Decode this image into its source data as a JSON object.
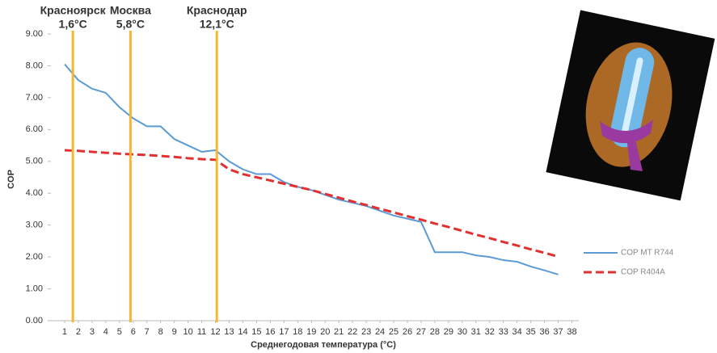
{
  "chart_data": {
    "type": "line",
    "x_label": "Среднегодовая температура (°C)",
    "y_label": "COP",
    "x": [
      1,
      2,
      3,
      4,
      5,
      6,
      7,
      8,
      9,
      10,
      11,
      12,
      13,
      14,
      15,
      16,
      17,
      18,
      19,
      20,
      21,
      22,
      23,
      24,
      25,
      26,
      27,
      28,
      29,
      30,
      31,
      32,
      33,
      34,
      35,
      36,
      37
    ],
    "series": [
      {
        "name": "COP MT R744",
        "color": "#5b9bd5",
        "dashed": false,
        "values": [
          8.05,
          7.55,
          7.28,
          7.15,
          6.7,
          6.35,
          6.1,
          6.1,
          5.7,
          5.5,
          5.3,
          5.35,
          5.0,
          4.75,
          4.6,
          4.6,
          4.35,
          4.2,
          4.1,
          3.95,
          3.8,
          3.7,
          3.6,
          3.45,
          3.3,
          3.2,
          3.1,
          2.15,
          2.15,
          2.15,
          2.05,
          2.0,
          1.9,
          1.85,
          1.7,
          1.58,
          1.45
        ]
      },
      {
        "name": "COP R404A",
        "color": "#e03030",
        "dashed": true,
        "values": [
          5.35,
          5.33,
          5.3,
          5.27,
          5.24,
          5.22,
          5.2,
          5.17,
          5.14,
          5.1,
          5.07,
          5.05,
          4.75,
          4.6,
          4.5,
          4.4,
          4.3,
          4.2,
          4.1,
          3.98,
          3.86,
          3.74,
          3.63,
          3.51,
          3.4,
          3.28,
          3.17,
          3.05,
          2.94,
          2.82,
          2.7,
          2.59,
          2.47,
          2.36,
          2.24,
          2.13,
          2.01
        ]
      }
    ],
    "annotations": [
      {
        "x": 1.6,
        "label": "Красноярск",
        "sublabel": "1,6°C"
      },
      {
        "x": 5.8,
        "label": "Москва",
        "sublabel": "5,8°C"
      },
      {
        "x": 12.1,
        "label": "Краснодар",
        "sublabel": "12,1°C"
      }
    ],
    "annotation_color": "#f5b830",
    "xlim": [
      0,
      38.5
    ],
    "xticks": [
      1,
      2,
      3,
      4,
      5,
      6,
      7,
      8,
      9,
      10,
      11,
      12,
      13,
      14,
      15,
      16,
      17,
      18,
      19,
      20,
      21,
      22,
      23,
      24,
      25,
      26,
      27,
      28,
      29,
      30,
      31,
      32,
      33,
      34,
      35,
      36,
      37,
      38
    ],
    "ylim": [
      0,
      9
    ],
    "yticks": [
      {
        "value": 0,
        "label": "0.00"
      },
      {
        "value": 1,
        "label": "1.00"
      },
      {
        "value": 2,
        "label": "2.00"
      },
      {
        "value": 3,
        "label": "3.00"
      },
      {
        "value": 4,
        "label": "4.00"
      },
      {
        "value": 5,
        "label": "5.00"
      },
      {
        "value": 6,
        "label": "6.00"
      },
      {
        "value": 7,
        "label": "7.00"
      },
      {
        "value": 8,
        "label": "8.00"
      },
      {
        "value": 9,
        "label": "9.00"
      }
    ],
    "grid": false,
    "legend": "right"
  }
}
